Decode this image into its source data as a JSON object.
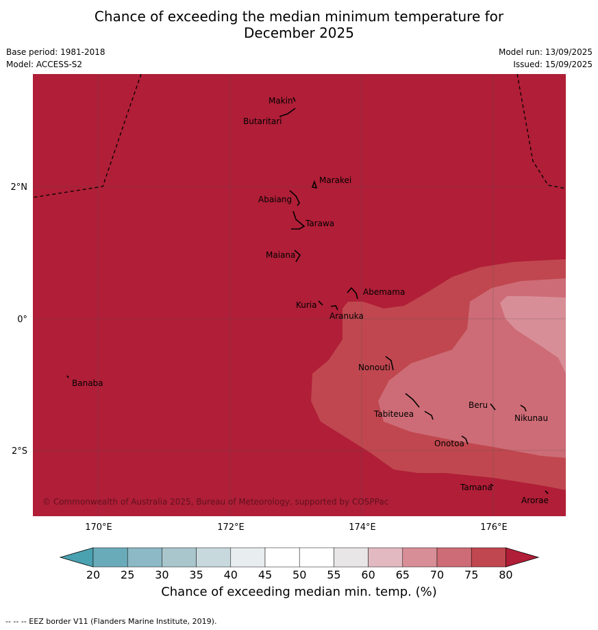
{
  "title_line1": "Chance of exceeding the median minimum temperature for",
  "title_line2": "December 2025",
  "base_period": "Base period: 1981-2018",
  "model": "Model: ACCESS-S2",
  "model_run": "Model run: 13/09/2025",
  "issued": "Issued: 15/09/2025",
  "copyright": "© Commonwealth of Australia 2025, Bureau of Meteorology, supported by COSPPac",
  "lat_ticks": [
    "2°N",
    "0°",
    "2°S"
  ],
  "lon_ticks": [
    "170°E",
    "172°E",
    "174°E",
    "176°E"
  ],
  "places": [
    {
      "name": "Makin"
    },
    {
      "name": "Butaritari"
    },
    {
      "name": "Marakei"
    },
    {
      "name": "Abaiang"
    },
    {
      "name": "Tarawa"
    },
    {
      "name": "Maiana"
    },
    {
      "name": "Abemama"
    },
    {
      "name": "Kuria"
    },
    {
      "name": "Aranuka"
    },
    {
      "name": "Nonouti"
    },
    {
      "name": "Banaba"
    },
    {
      "name": "Beru"
    },
    {
      "name": "Tabiteuea"
    },
    {
      "name": "Nikunau"
    },
    {
      "name": "Onotoa"
    },
    {
      "name": "Tamana"
    },
    {
      "name": "Arorae"
    }
  ],
  "colorbar": {
    "ticks": [
      "20",
      "25",
      "30",
      "35",
      "40",
      "45",
      "50",
      "55",
      "60",
      "65",
      "70",
      "75",
      "80"
    ],
    "colors": [
      "#6aabba",
      "#8cb9c5",
      "#a9c6cc",
      "#c8d9dd",
      "#e8eef0",
      "#ffffff",
      "#ffffff",
      "#e8e6e7",
      "#e2b9c0",
      "#d88e97",
      "#cd6c76",
      "#c0474f"
    ],
    "low_extend_color": "#4aa1b0",
    "high_extend_color": "#b01e37",
    "label": "Chance of exceeding median min. temp. (%)"
  },
  "map_colors": {
    "gt80": "#b01e37",
    "75_80": "#c0474f",
    "70_75": "#cd6c76",
    "65_70": "#d88e97"
  },
  "footer": "--  --  -- EEZ border V11 (Flanders Marine Institute, 2019)."
}
